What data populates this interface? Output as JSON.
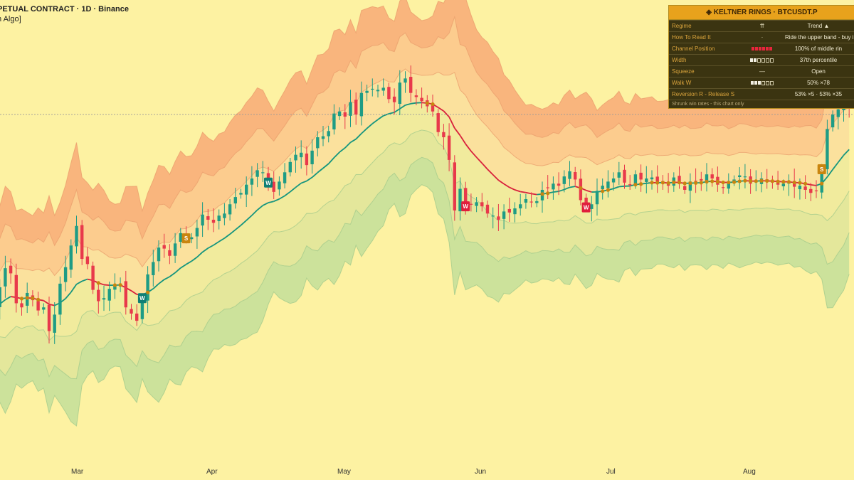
{
  "header": {
    "title": "PETUAL CONTRACT · 1D · Binance",
    "subtitle": "n Algo]"
  },
  "panel": {
    "title": "◈ KELTNER RINGS · BTCUSDT.P",
    "rows": [
      {
        "label": "Regime",
        "mid": "⇈",
        "value": "Trend ▲"
      },
      {
        "label": "How To Read It",
        "mid": "·",
        "value": "Ride the upper band - buy inn"
      },
      {
        "label": "Channel Position",
        "mid": "",
        "value": "100% of middle rin"
      },
      {
        "label": "Width",
        "mid": "",
        "value": "37th percentile"
      },
      {
        "label": "Squeeze",
        "mid": "—",
        "value": "Open"
      },
      {
        "label": "Walk W",
        "mid": "",
        "value": "50% ×78"
      },
      {
        "label": "Reversion R - Release S",
        "mid": "",
        "value": "53% ×5 · 53% ×35"
      }
    ],
    "footer": "Shrunk win rates - this chart only",
    "bars": {
      "channel_position": [
        "red",
        "red",
        "red",
        "red",
        "red",
        "red"
      ],
      "width": [
        "white",
        "white",
        "hollow",
        "hollow",
        "hollow",
        "hollow"
      ],
      "walk": [
        "white",
        "white",
        "white",
        "hollow",
        "hollow",
        "hollow"
      ]
    }
  },
  "chart_data": {
    "type": "candlestick",
    "x_tick_labels": [
      "Mar",
      "Apr",
      "May",
      "Jun",
      "Jul",
      "Aug"
    ],
    "series": [
      {
        "values": [
          [
            0,
            396
          ],
          [
            2,
            433
          ],
          [
            3,
            428
          ],
          [
            4,
            399
          ],
          [
            5,
            395
          ],
          [
            6,
            409
          ],
          [
            7,
            402
          ],
          [
            8,
            392
          ],
          [
            9,
            395
          ],
          [
            10,
            372
          ],
          [
            11,
            388
          ],
          [
            12,
            418
          ],
          [
            13,
            434
          ],
          [
            14,
            455
          ],
          [
            15,
            474
          ],
          [
            16,
            442
          ],
          [
            17,
            437
          ],
          [
            18,
            412
          ],
          [
            19,
            401
          ],
          [
            20,
            404
          ],
          [
            21,
            413
          ],
          [
            22,
            417
          ],
          [
            23,
            418
          ],
          [
            24,
            395
          ],
          [
            25,
            389
          ],
          [
            26,
            382
          ],
          [
            27,
            404
          ],
          [
            28,
            427
          ],
          [
            29,
            439
          ],
          [
            30,
            453
          ],
          [
            31,
            452
          ],
          [
            32,
            445
          ],
          [
            33,
            457
          ],
          [
            34,
            467
          ],
          [
            35,
            462
          ],
          [
            36,
            463
          ],
          [
            37,
            472
          ],
          [
            38,
            485
          ],
          [
            39,
            480
          ],
          [
            40,
            477
          ],
          [
            41,
            484
          ],
          [
            42,
            486
          ],
          [
            43,
            495
          ],
          [
            44,
            502
          ],
          [
            45,
            506
          ],
          [
            46,
            514
          ],
          [
            47,
            520
          ],
          [
            48,
            528
          ],
          [
            49,
            526
          ],
          [
            50,
            516
          ],
          [
            51,
            507
          ],
          [
            52,
            517
          ],
          [
            53,
            526
          ],
          [
            54,
            536
          ],
          [
            55,
            543
          ],
          [
            56,
            545
          ],
          [
            57,
            533
          ],
          [
            58,
            547
          ],
          [
            59,
            560
          ],
          [
            60,
            561
          ],
          [
            61,
            566
          ],
          [
            62,
            583
          ],
          [
            63,
            585
          ],
          [
            64,
            580
          ],
          [
            65,
            594
          ],
          [
            66,
            582
          ],
          [
            67,
            603
          ],
          [
            68,
            605
          ],
          [
            69,
            607
          ],
          [
            70,
            606
          ],
          [
            71,
            608
          ],
          [
            72,
            597
          ],
          [
            73,
            594
          ],
          [
            74,
            613
          ],
          [
            75,
            617
          ],
          [
            76,
            603
          ],
          [
            77,
            599
          ],
          [
            78,
            595
          ],
          [
            79,
            590
          ],
          [
            80,
            585
          ],
          [
            81,
            565
          ],
          [
            82,
            560
          ],
          [
            83,
            538
          ],
          [
            84,
            489
          ],
          [
            85,
            510
          ],
          [
            86,
            493
          ],
          [
            87,
            495
          ],
          [
            88,
            497
          ],
          [
            89,
            493
          ],
          [
            90,
            486
          ],
          [
            91,
            484
          ],
          [
            92,
            480
          ],
          [
            93,
            488
          ],
          [
            94,
            487
          ],
          [
            95,
            491
          ],
          [
            96,
            495
          ],
          [
            97,
            500
          ],
          [
            98,
            497
          ],
          [
            99,
            498
          ],
          [
            100,
            509
          ],
          [
            101,
            511
          ],
          [
            102,
            515
          ],
          [
            103,
            513
          ],
          [
            104,
            522
          ],
          [
            105,
            527
          ],
          [
            106,
            519
          ],
          [
            107,
            499
          ],
          [
            108,
            492
          ],
          [
            109,
            495
          ],
          [
            110,
            508
          ],
          [
            111,
            513
          ],
          [
            112,
            517
          ],
          [
            113,
            520
          ],
          [
            114,
            526
          ],
          [
            115,
            516
          ],
          [
            116,
            514
          ],
          [
            117,
            524
          ],
          [
            118,
            519
          ],
          [
            119,
            520
          ],
          [
            120,
            521
          ],
          [
            121,
            515
          ],
          [
            122,
            517
          ],
          [
            123,
            513
          ],
          [
            124,
            521
          ],
          [
            125,
            515
          ],
          [
            126,
            509
          ],
          [
            127,
            517
          ],
          [
            128,
            517
          ],
          [
            129,
            518
          ],
          [
            130,
            524
          ],
          [
            131,
            520
          ],
          [
            132,
            514
          ],
          [
            133,
            511
          ],
          [
            134,
            516
          ],
          [
            135,
            519
          ],
          [
            136,
            523
          ],
          [
            137,
            522
          ],
          [
            138,
            515
          ],
          [
            139,
            517
          ],
          [
            140,
            520
          ],
          [
            141,
            517
          ],
          [
            142,
            516
          ],
          [
            143,
            514
          ],
          [
            144,
            515
          ],
          [
            145,
            516
          ],
          [
            146,
            512
          ],
          [
            147,
            513
          ],
          [
            148,
            509
          ],
          [
            149,
            506
          ],
          [
            150,
            508
          ],
          [
            151,
            529
          ],
          [
            152,
            568
          ],
          [
            153,
            582
          ],
          [
            154,
            587
          ],
          [
            155,
            593
          ],
          [
            156,
            589
          ]
        ]
      }
    ],
    "signal_labels": [
      "W",
      "W",
      "S",
      "W",
      "W",
      "S"
    ]
  }
}
